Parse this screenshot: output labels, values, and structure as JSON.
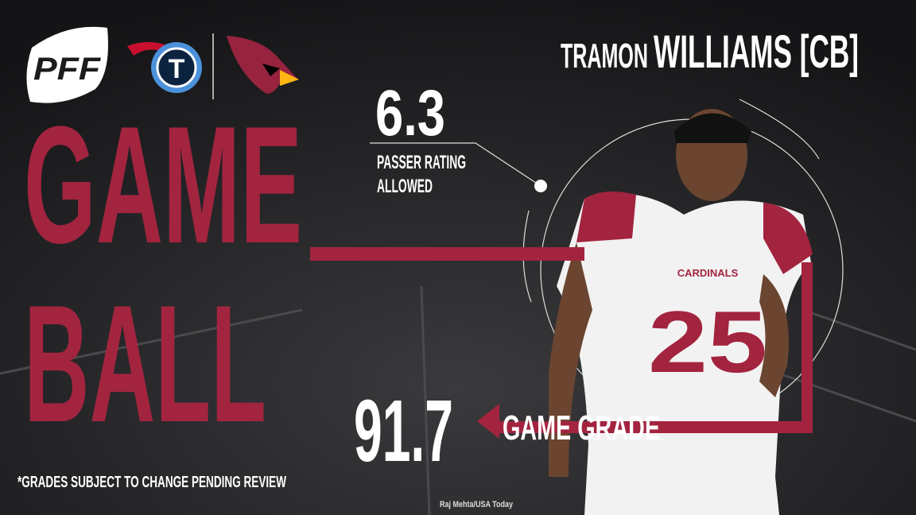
{
  "logo": {
    "text": "PFF"
  },
  "player": {
    "first_name": "TRAMON",
    "last_name": "WILLIAMS [CB]"
  },
  "headline": {
    "line1": "GAME",
    "line2": "BALL"
  },
  "stat": {
    "value": "6.3",
    "label_line1": "PASSER RATING",
    "label_line2": "ALLOWED"
  },
  "grade": {
    "value": "91.7",
    "label": "GAME GRADE"
  },
  "footnote": "*GRADES SUBJECT TO CHANGE PENDING REVIEW",
  "credit": "Raj Mehta/USA Today"
}
